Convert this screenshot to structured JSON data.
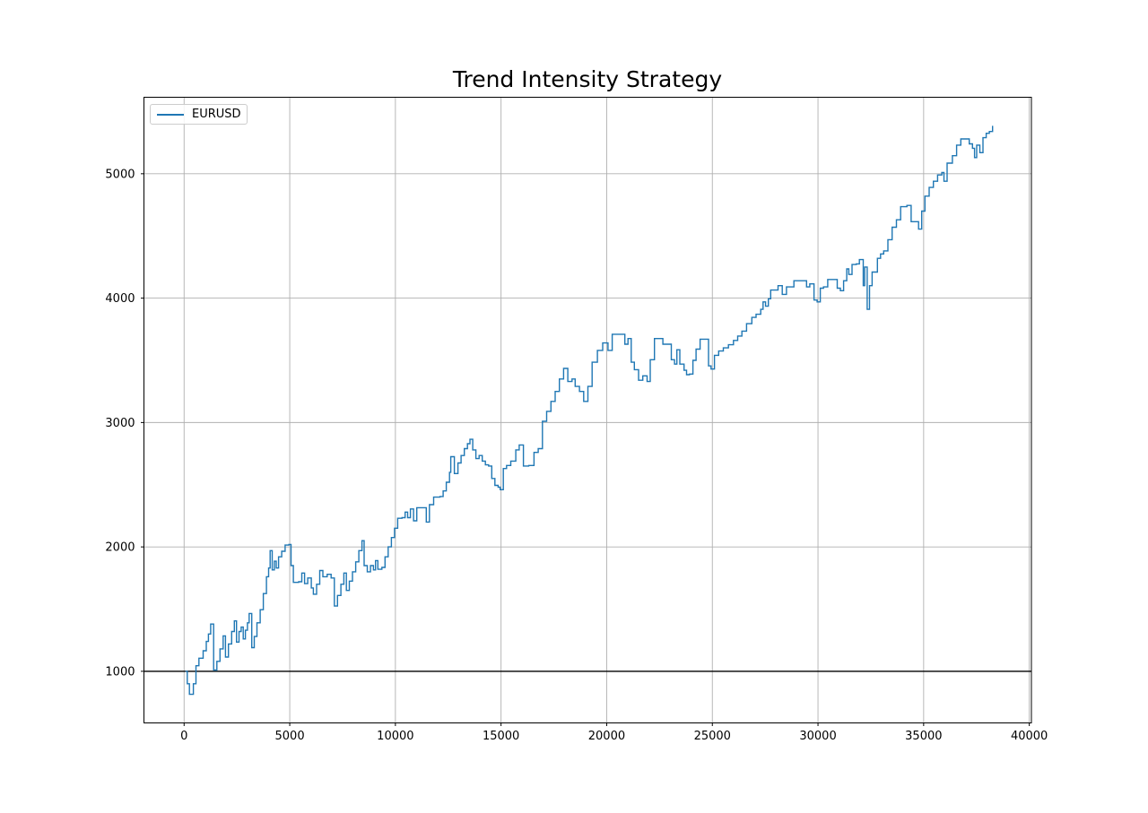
{
  "chart_data": {
    "type": "line",
    "title": "Trend Intensity Strategy",
    "xlabel": "",
    "ylabel": "",
    "line_style": "steps-post",
    "grid": true,
    "grid_color": "#b0b0b0",
    "background_color": "#ffffff",
    "spine_color": "#000000",
    "baseline": {
      "y": 1000,
      "color": "#000000"
    },
    "xlim": [
      -1900,
      40100
    ],
    "ylim": [
      585,
      5615
    ],
    "xticks": {
      "values": [
        0,
        5000,
        10000,
        15000,
        20000,
        25000,
        30000,
        35000,
        40000
      ],
      "labels": [
        "0",
        "5000",
        "10000",
        "15000",
        "20000",
        "25000",
        "30000",
        "35000",
        "40000"
      ]
    },
    "yticks": {
      "values": [
        1000,
        2000,
        3000,
        4000,
        5000
      ],
      "labels": [
        "1000",
        "2000",
        "3000",
        "4000",
        "5000"
      ]
    },
    "legend": {
      "position": "upper-left",
      "entries": [
        {
          "label": "EURUSD",
          "color": "#1f77b4"
        }
      ]
    },
    "series": [
      {
        "name": "EURUSD",
        "color": "#1f77b4",
        "points": [
          [
            60,
            1000
          ],
          [
            150,
            900
          ],
          [
            250,
            815
          ],
          [
            440,
            900
          ],
          [
            560,
            1045
          ],
          [
            700,
            1105
          ],
          [
            900,
            1165
          ],
          [
            1050,
            1240
          ],
          [
            1150,
            1300
          ],
          [
            1260,
            1380
          ],
          [
            1400,
            1010
          ],
          [
            1550,
            1080
          ],
          [
            1700,
            1180
          ],
          [
            1850,
            1285
          ],
          [
            1960,
            1115
          ],
          [
            2100,
            1220
          ],
          [
            2250,
            1320
          ],
          [
            2380,
            1405
          ],
          [
            2480,
            1235
          ],
          [
            2600,
            1320
          ],
          [
            2700,
            1355
          ],
          [
            2800,
            1260
          ],
          [
            2900,
            1330
          ],
          [
            3000,
            1390
          ],
          [
            3080,
            1465
          ],
          [
            3200,
            1190
          ],
          [
            3320,
            1280
          ],
          [
            3450,
            1390
          ],
          [
            3600,
            1495
          ],
          [
            3750,
            1625
          ],
          [
            3900,
            1760
          ],
          [
            4000,
            1830
          ],
          [
            4070,
            1970
          ],
          [
            4170,
            1815
          ],
          [
            4270,
            1885
          ],
          [
            4360,
            1830
          ],
          [
            4470,
            1920
          ],
          [
            4620,
            1965
          ],
          [
            4780,
            2015
          ],
          [
            4960,
            2020
          ],
          [
            5060,
            1850
          ],
          [
            5170,
            1715
          ],
          [
            5420,
            1720
          ],
          [
            5570,
            1790
          ],
          [
            5700,
            1705
          ],
          [
            5850,
            1750
          ],
          [
            6020,
            1670
          ],
          [
            6120,
            1620
          ],
          [
            6270,
            1700
          ],
          [
            6420,
            1810
          ],
          [
            6570,
            1760
          ],
          [
            6770,
            1780
          ],
          [
            6960,
            1750
          ],
          [
            7110,
            1525
          ],
          [
            7260,
            1610
          ],
          [
            7420,
            1700
          ],
          [
            7560,
            1790
          ],
          [
            7680,
            1650
          ],
          [
            7820,
            1725
          ],
          [
            7970,
            1800
          ],
          [
            8120,
            1880
          ],
          [
            8270,
            1970
          ],
          [
            8420,
            2050
          ],
          [
            8520,
            1850
          ],
          [
            8670,
            1800
          ],
          [
            8820,
            1850
          ],
          [
            8960,
            1815
          ],
          [
            9060,
            1890
          ],
          [
            9170,
            1820
          ],
          [
            9360,
            1835
          ],
          [
            9510,
            1920
          ],
          [
            9660,
            2000
          ],
          [
            9810,
            2075
          ],
          [
            9960,
            2150
          ],
          [
            10110,
            2230
          ],
          [
            10310,
            2235
          ],
          [
            10460,
            2280
          ],
          [
            10580,
            2235
          ],
          [
            10710,
            2305
          ],
          [
            10860,
            2210
          ],
          [
            11010,
            2315
          ],
          [
            11310,
            2315
          ],
          [
            11460,
            2200
          ],
          [
            11610,
            2340
          ],
          [
            11810,
            2400
          ],
          [
            12110,
            2405
          ],
          [
            12260,
            2450
          ],
          [
            12410,
            2520
          ],
          [
            12560,
            2600
          ],
          [
            12620,
            2725
          ],
          [
            12790,
            2590
          ],
          [
            12960,
            2675
          ],
          [
            13110,
            2735
          ],
          [
            13260,
            2790
          ],
          [
            13410,
            2830
          ],
          [
            13530,
            2865
          ],
          [
            13660,
            2780
          ],
          [
            13810,
            2710
          ],
          [
            13960,
            2735
          ],
          [
            14110,
            2690
          ],
          [
            14260,
            2660
          ],
          [
            14410,
            2650
          ],
          [
            14560,
            2550
          ],
          [
            14710,
            2495
          ],
          [
            14860,
            2480
          ],
          [
            14960,
            2460
          ],
          [
            15110,
            2630
          ],
          [
            15260,
            2655
          ],
          [
            15460,
            2690
          ],
          [
            15700,
            2780
          ],
          [
            15860,
            2820
          ],
          [
            16060,
            2650
          ],
          [
            16310,
            2655
          ],
          [
            16560,
            2760
          ],
          [
            16760,
            2790
          ],
          [
            16960,
            3010
          ],
          [
            17160,
            3090
          ],
          [
            17360,
            3170
          ],
          [
            17560,
            3250
          ],
          [
            17760,
            3350
          ],
          [
            17960,
            3435
          ],
          [
            18160,
            3330
          ],
          [
            18360,
            3350
          ],
          [
            18510,
            3290
          ],
          [
            18710,
            3250
          ],
          [
            18910,
            3170
          ],
          [
            19110,
            3290
          ],
          [
            19310,
            3485
          ],
          [
            19560,
            3580
          ],
          [
            19810,
            3640
          ],
          [
            20060,
            3580
          ],
          [
            20260,
            3710
          ],
          [
            20660,
            3710
          ],
          [
            20860,
            3630
          ],
          [
            21010,
            3675
          ],
          [
            21160,
            3485
          ],
          [
            21310,
            3425
          ],
          [
            21510,
            3340
          ],
          [
            21710,
            3375
          ],
          [
            21910,
            3330
          ],
          [
            22060,
            3505
          ],
          [
            22260,
            3675
          ],
          [
            22510,
            3675
          ],
          [
            22660,
            3630
          ],
          [
            22910,
            3630
          ],
          [
            23060,
            3505
          ],
          [
            23210,
            3470
          ],
          [
            23320,
            3585
          ],
          [
            23460,
            3470
          ],
          [
            23660,
            3420
          ],
          [
            23780,
            3385
          ],
          [
            23920,
            3390
          ],
          [
            24080,
            3500
          ],
          [
            24230,
            3590
          ],
          [
            24420,
            3670
          ],
          [
            24700,
            3670
          ],
          [
            24820,
            3455
          ],
          [
            24940,
            3430
          ],
          [
            25100,
            3540
          ],
          [
            25300,
            3575
          ],
          [
            25520,
            3600
          ],
          [
            25760,
            3625
          ],
          [
            26000,
            3660
          ],
          [
            26200,
            3695
          ],
          [
            26400,
            3735
          ],
          [
            26620,
            3795
          ],
          [
            26870,
            3845
          ],
          [
            27070,
            3870
          ],
          [
            27290,
            3910
          ],
          [
            27400,
            3970
          ],
          [
            27520,
            3935
          ],
          [
            27650,
            3995
          ],
          [
            27760,
            4065
          ],
          [
            28110,
            4100
          ],
          [
            28310,
            4030
          ],
          [
            28510,
            4090
          ],
          [
            28860,
            4140
          ],
          [
            29310,
            4140
          ],
          [
            29460,
            4090
          ],
          [
            29610,
            4115
          ],
          [
            29810,
            3985
          ],
          [
            29960,
            3970
          ],
          [
            30110,
            4080
          ],
          [
            30260,
            4090
          ],
          [
            30460,
            4150
          ],
          [
            30760,
            4150
          ],
          [
            30910,
            4080
          ],
          [
            31060,
            4060
          ],
          [
            31210,
            4140
          ],
          [
            31360,
            4235
          ],
          [
            31460,
            4190
          ],
          [
            31610,
            4270
          ],
          [
            31810,
            4275
          ],
          [
            31960,
            4310
          ],
          [
            32060,
            4310
          ],
          [
            32140,
            4100
          ],
          [
            32210,
            4250
          ],
          [
            32330,
            3910
          ],
          [
            32440,
            4100
          ],
          [
            32560,
            4210
          ],
          [
            32810,
            4320
          ],
          [
            32960,
            4355
          ],
          [
            33110,
            4380
          ],
          [
            33310,
            4470
          ],
          [
            33510,
            4570
          ],
          [
            33710,
            4630
          ],
          [
            33910,
            4735
          ],
          [
            34210,
            4745
          ],
          [
            34410,
            4615
          ],
          [
            34660,
            4615
          ],
          [
            34760,
            4555
          ],
          [
            34910,
            4700
          ],
          [
            35060,
            4820
          ],
          [
            35260,
            4890
          ],
          [
            35460,
            4940
          ],
          [
            35660,
            4990
          ],
          [
            35860,
            5010
          ],
          [
            35960,
            4940
          ],
          [
            36110,
            5085
          ],
          [
            36360,
            5145
          ],
          [
            36560,
            5230
          ],
          [
            36760,
            5280
          ],
          [
            37010,
            5280
          ],
          [
            37160,
            5240
          ],
          [
            37310,
            5205
          ],
          [
            37410,
            5130
          ],
          [
            37510,
            5230
          ],
          [
            37660,
            5170
          ],
          [
            37810,
            5290
          ],
          [
            37960,
            5325
          ],
          [
            38110,
            5340
          ],
          [
            38260,
            5385
          ]
        ]
      }
    ]
  }
}
